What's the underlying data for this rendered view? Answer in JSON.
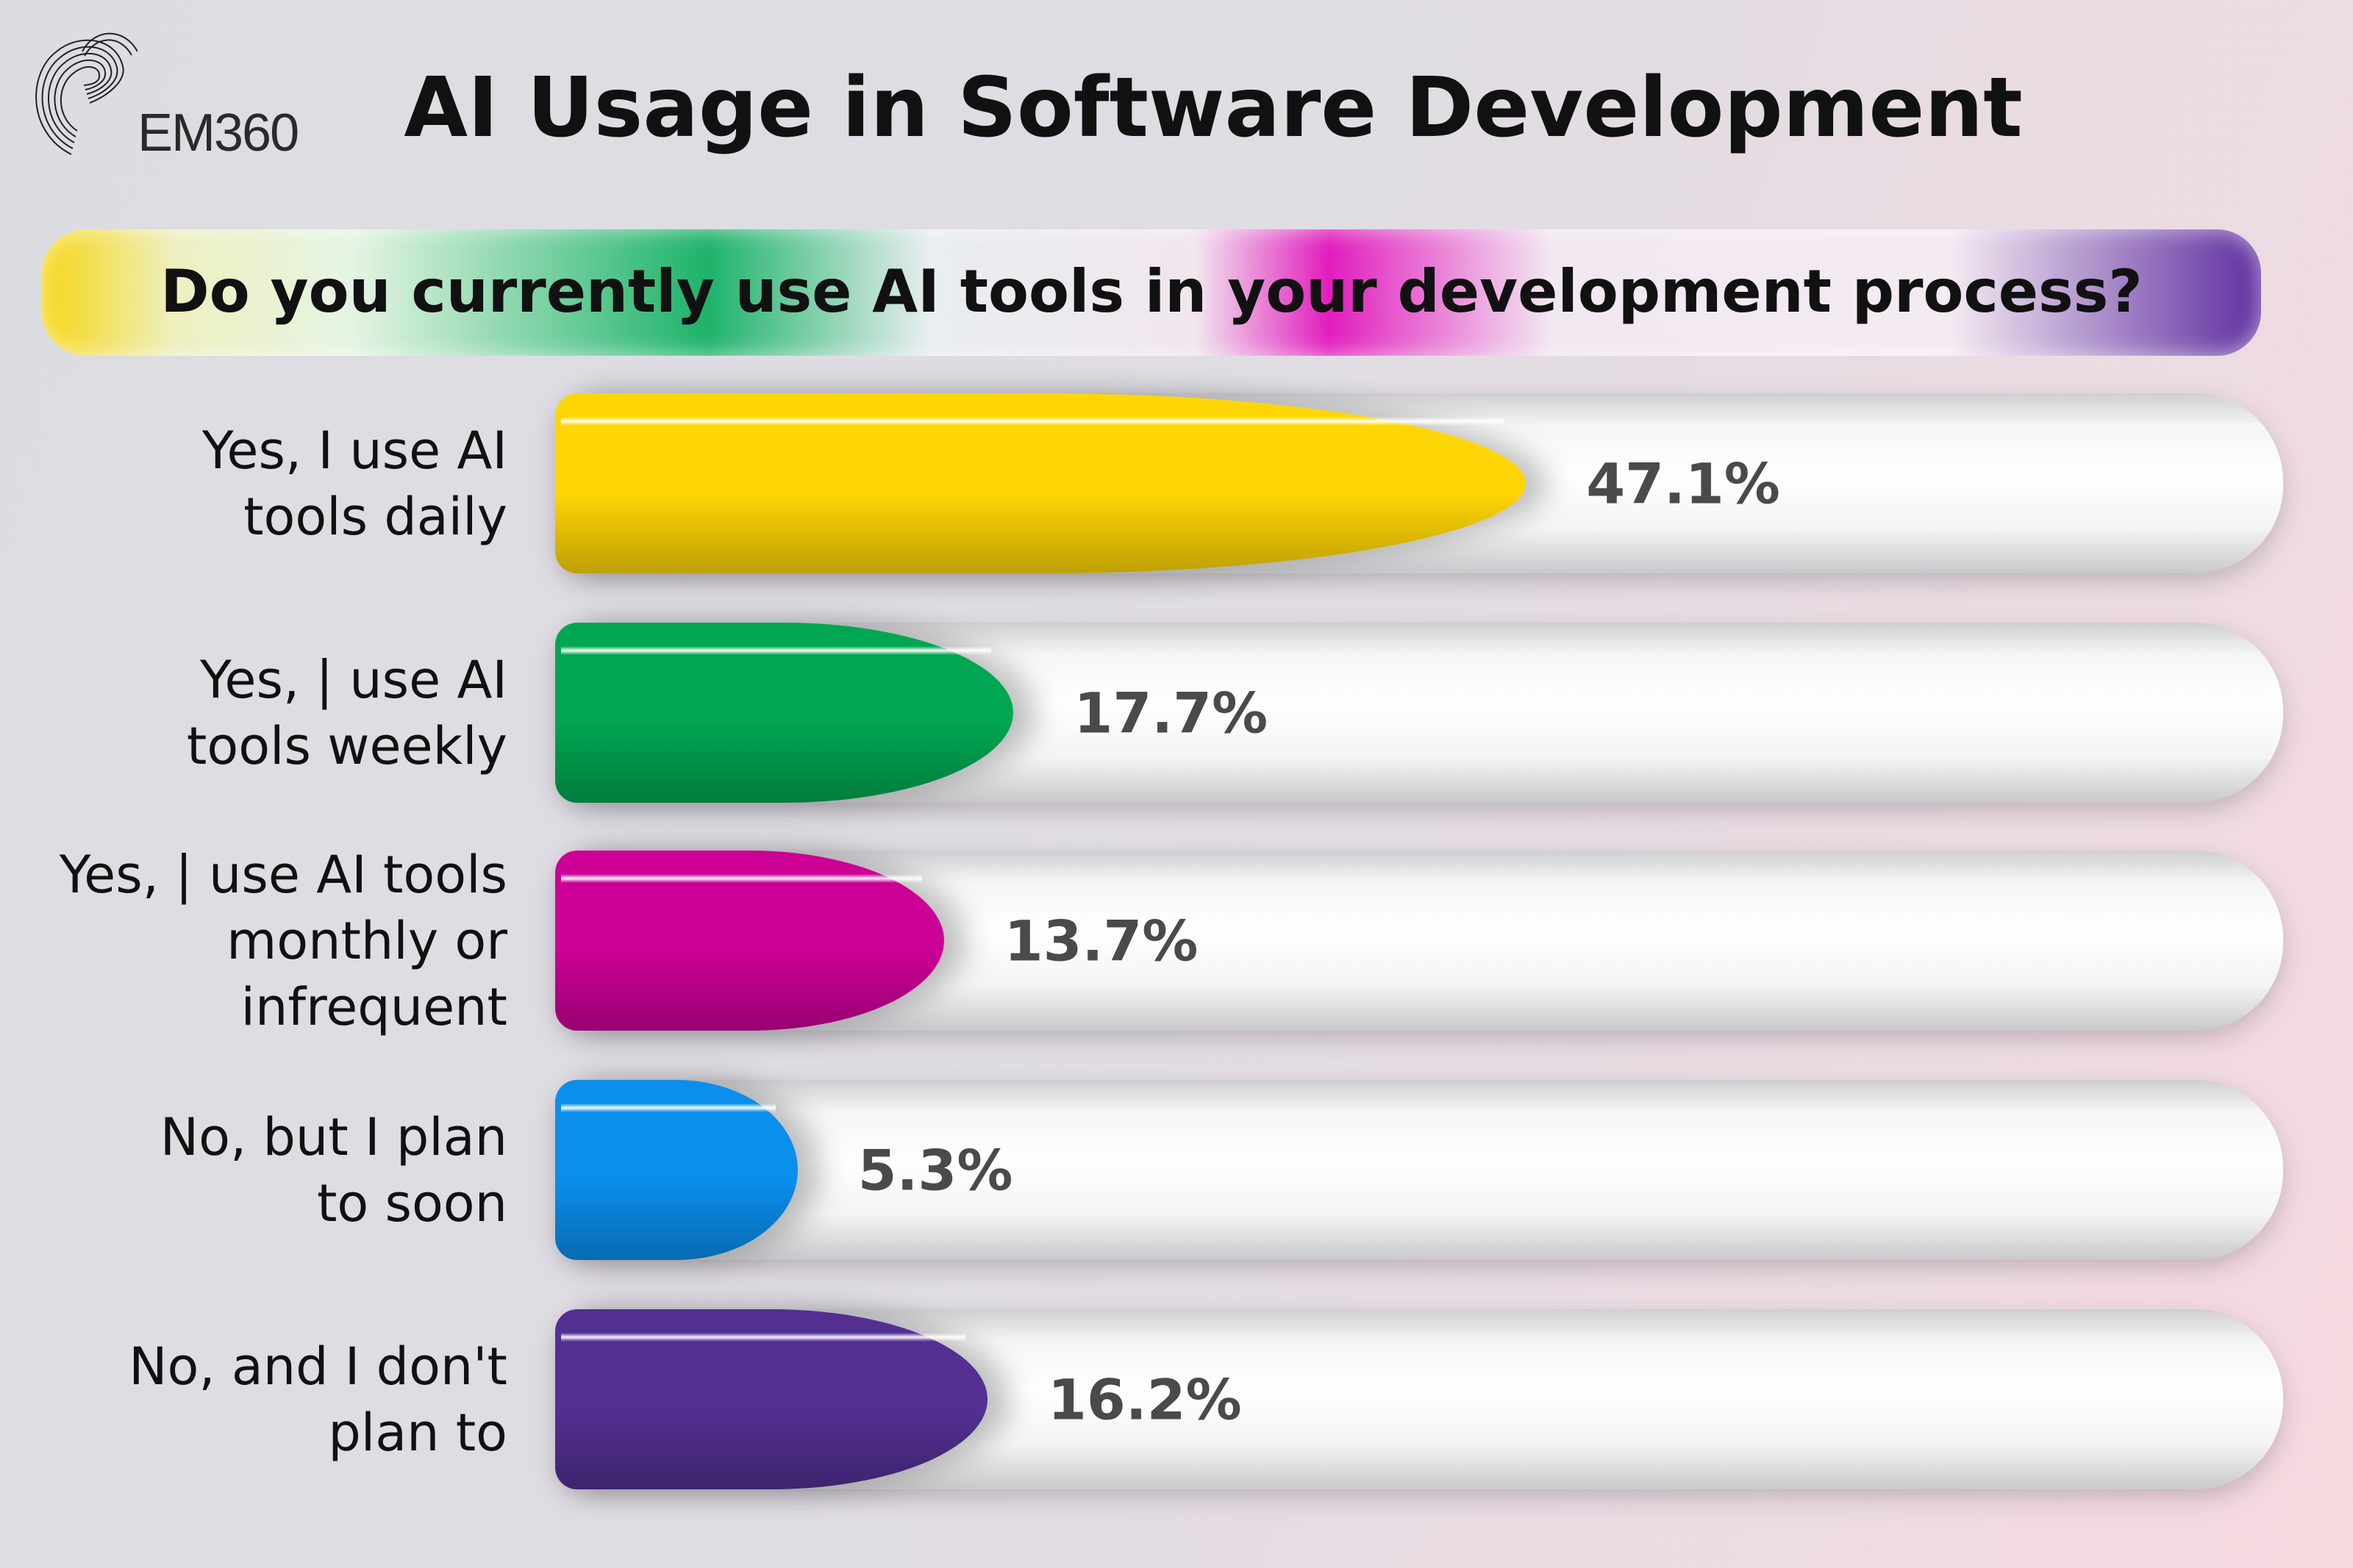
{
  "logo": {
    "text": "EM360"
  },
  "title": "AI Usage in Software Development",
  "chart_data": {
    "type": "bar",
    "orientation": "horizontal",
    "title": "AI Usage in Software Development",
    "subtitle": "Do you currently use AI tools in your development process?",
    "categories": [
      "Yes, I use AI\ntools daily",
      "Yes, | use AI\ntools weekly",
      "Yes, | use AI tools\nmonthly or\ninfrequent",
      "No, but I plan\nto soon",
      "No, and I don't\nplan to"
    ],
    "values": [
      47.1,
      17.7,
      13.7,
      5.3,
      16.2
    ],
    "value_labels": [
      "47.1%",
      "17.7%",
      "13.7%",
      "5.3%",
      "16.2%"
    ],
    "colors": [
      "#ffd605",
      "#00a651",
      "#cc0096",
      "#0a8fec",
      "#532f92"
    ],
    "xlim": [
      0,
      100
    ],
    "unit": "%"
  }
}
